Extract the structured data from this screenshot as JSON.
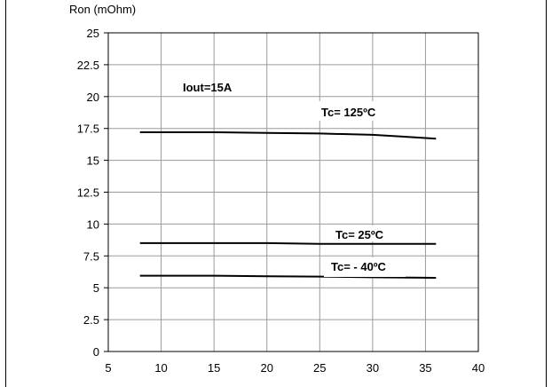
{
  "chart_data": {
    "type": "line",
    "title": "",
    "ylabel": "Ron (mOhm)",
    "xlabel": "",
    "xlim": [
      5,
      40
    ],
    "ylim": [
      0,
      25
    ],
    "x_ticks": [
      "5",
      "10",
      "15",
      "20",
      "25",
      "30",
      "35",
      "40"
    ],
    "y_ticks": [
      "0",
      "2.5",
      "5",
      "7.5",
      "10",
      "12.5",
      "15",
      "17.5",
      "20",
      "22.5",
      "25"
    ],
    "grid": true,
    "annotations": [
      {
        "text": "Iout=15A"
      }
    ],
    "series": [
      {
        "name": "Tc= 125ºC",
        "x": [
          8,
          15,
          20,
          25,
          30,
          33,
          36
        ],
        "y": [
          17.2,
          17.2,
          17.15,
          17.1,
          17.0,
          16.85,
          16.7
        ]
      },
      {
        "name": "Tc= 25ºC",
        "x": [
          8,
          15,
          20,
          25,
          30,
          36
        ],
        "y": [
          8.5,
          8.5,
          8.5,
          8.45,
          8.45,
          8.45
        ]
      },
      {
        "name": "Tc= - 40ºC",
        "x": [
          8,
          15,
          20,
          25,
          30,
          36
        ],
        "y": [
          5.95,
          5.95,
          5.9,
          5.88,
          5.82,
          5.78
        ]
      }
    ]
  }
}
